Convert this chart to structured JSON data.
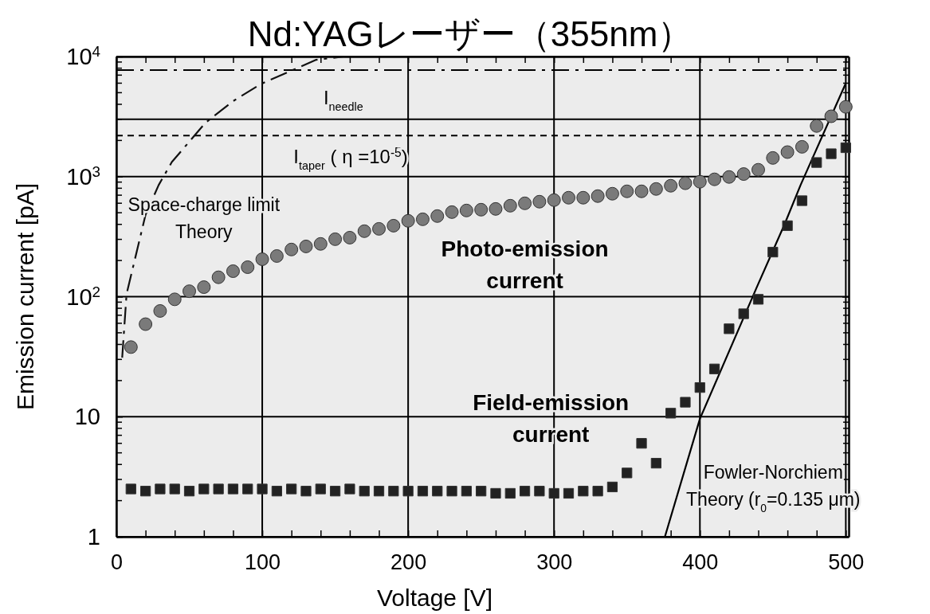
{
  "chart_data": {
    "type": "scatter",
    "title": "Nd:YAGレーザー（355nm）",
    "xlabel": "Voltage [V]",
    "ylabel": "Emission current [pA]",
    "xlim": [
      0,
      502
    ],
    "ylim": [
      1,
      10000
    ],
    "log": "y",
    "grid": true,
    "xticks": [
      0,
      {
        "value": 20,
        "label": null
      },
      {
        "value": 40,
        "label": null
      },
      {
        "value": 60,
        "label": null
      },
      {
        "value": 80,
        "label": null
      },
      100,
      {
        "value": 120,
        "label": null
      },
      {
        "value": 140,
        "label": null
      },
      {
        "value": 160,
        "label": null
      },
      {
        "value": 180,
        "label": null
      },
      200,
      {
        "value": 220,
        "label": null
      },
      {
        "value": 240,
        "label": null
      },
      {
        "value": 260,
        "label": null
      },
      {
        "value": 280,
        "label": null
      },
      300,
      {
        "value": 320,
        "label": null
      },
      {
        "value": 340,
        "label": null
      },
      {
        "value": 360,
        "label": null
      },
      {
        "value": 380,
        "label": null
      },
      400,
      {
        "value": 420,
        "label": null
      },
      {
        "value": 440,
        "label": null
      },
      {
        "value": 460,
        "label": null
      },
      {
        "value": 480,
        "label": null
      },
      500
    ],
    "yticks": [
      1,
      10,
      {
        "value": 100,
        "label": "10$^{2}$"
      },
      {
        "value": 1000,
        "label": "10$^{3}$"
      },
      {
        "value": 10000,
        "label": "10$^{4}$"
      }
    ],
    "series": [
      {
        "name": "Photo-emission\ncurrent",
        "marker": "circle",
        "color": "#7a7a7a",
        "x": [
          10,
          20,
          30,
          40,
          50,
          60,
          70,
          80,
          90,
          100,
          110,
          120,
          130,
          140,
          150,
          160,
          170,
          180,
          190,
          200,
          210,
          220,
          230,
          240,
          250,
          260,
          270,
          280,
          290,
          300,
          310,
          320,
          330,
          340,
          350,
          360,
          370,
          380,
          390,
          400,
          410,
          420,
          430,
          440,
          450,
          460,
          470,
          480,
          490,
          500
        ],
        "values": [
          38,
          59,
          76,
          95,
          111,
          120,
          145,
          163,
          176,
          205,
          218,
          247,
          262,
          275,
          301,
          310,
          351,
          367,
          390,
          428,
          441,
          469,
          506,
          522,
          530,
          538,
          572,
          599,
          618,
          637,
          667,
          667,
          688,
          720,
          754,
          754,
          789,
          839,
          880,
          906,
          949,
          993,
          1050,
          1140,
          1430,
          1600,
          1770,
          2640,
          3180,
          3810
        ]
      },
      {
        "name": "Field-emission\ncurrent",
        "marker": "square",
        "color": "#222222",
        "x": [
          10,
          20,
          30,
          40,
          50,
          60,
          70,
          80,
          90,
          100,
          110,
          120,
          130,
          140,
          150,
          160,
          170,
          180,
          190,
          200,
          210,
          220,
          230,
          240,
          250,
          260,
          270,
          280,
          290,
          300,
          310,
          320,
          330,
          340,
          350,
          360,
          370,
          380,
          390,
          400,
          410,
          420,
          430,
          440,
          450,
          460,
          470,
          480,
          490,
          500
        ],
        "values": [
          2.5,
          2.4,
          2.5,
          2.5,
          2.4,
          2.5,
          2.5,
          2.5,
          2.5,
          2.5,
          2.4,
          2.5,
          2.4,
          2.5,
          2.4,
          2.5,
          2.4,
          2.4,
          2.4,
          2.4,
          2.4,
          2.4,
          2.4,
          2.4,
          2.4,
          2.3,
          2.3,
          2.4,
          2.4,
          2.3,
          2.3,
          2.4,
          2.4,
          2.6,
          3.4,
          6.0,
          4.1,
          10.7,
          13.2,
          17.5,
          25,
          54,
          72,
          95,
          235,
          390,
          630,
          1310,
          1550,
          1740
        ]
      },
      {
        "name": "Space-charge limit\nTheory",
        "type": "line",
        "line_style": "dashed",
        "color": "#111111",
        "x": [
          4,
          7,
          20,
          29,
          38,
          61,
          80,
          99,
          137,
          156
        ],
        "values": [
          31,
          105,
          480,
          850,
          1320,
          2800,
          4250,
          5900,
          9400,
          10000
        ]
      },
      {
        "name": "Fowler-Norchiem\nTheory (r$_{0}$=0.135 μm)",
        "type": "line",
        "line_style": "solid",
        "color": "#000000",
        "x": [
          376,
          400,
          439,
          458,
          469,
          500
        ],
        "values": [
          1,
          9.6,
          120,
          400,
          850,
          6000
        ]
      }
    ],
    "ref_lines": [
      {
        "axis": "y",
        "value": 7700,
        "line_style": "dashed"
      },
      {
        "axis": "y",
        "value": 3000,
        "line_style": "solid"
      },
      {
        "axis": "y",
        "value": 2200,
        "line_style": "dotted"
      }
    ],
    "annotations": [
      "I$_{needle}$",
      "I$_{taper}$ ( η =10$^{-5}$)"
    ]
  }
}
